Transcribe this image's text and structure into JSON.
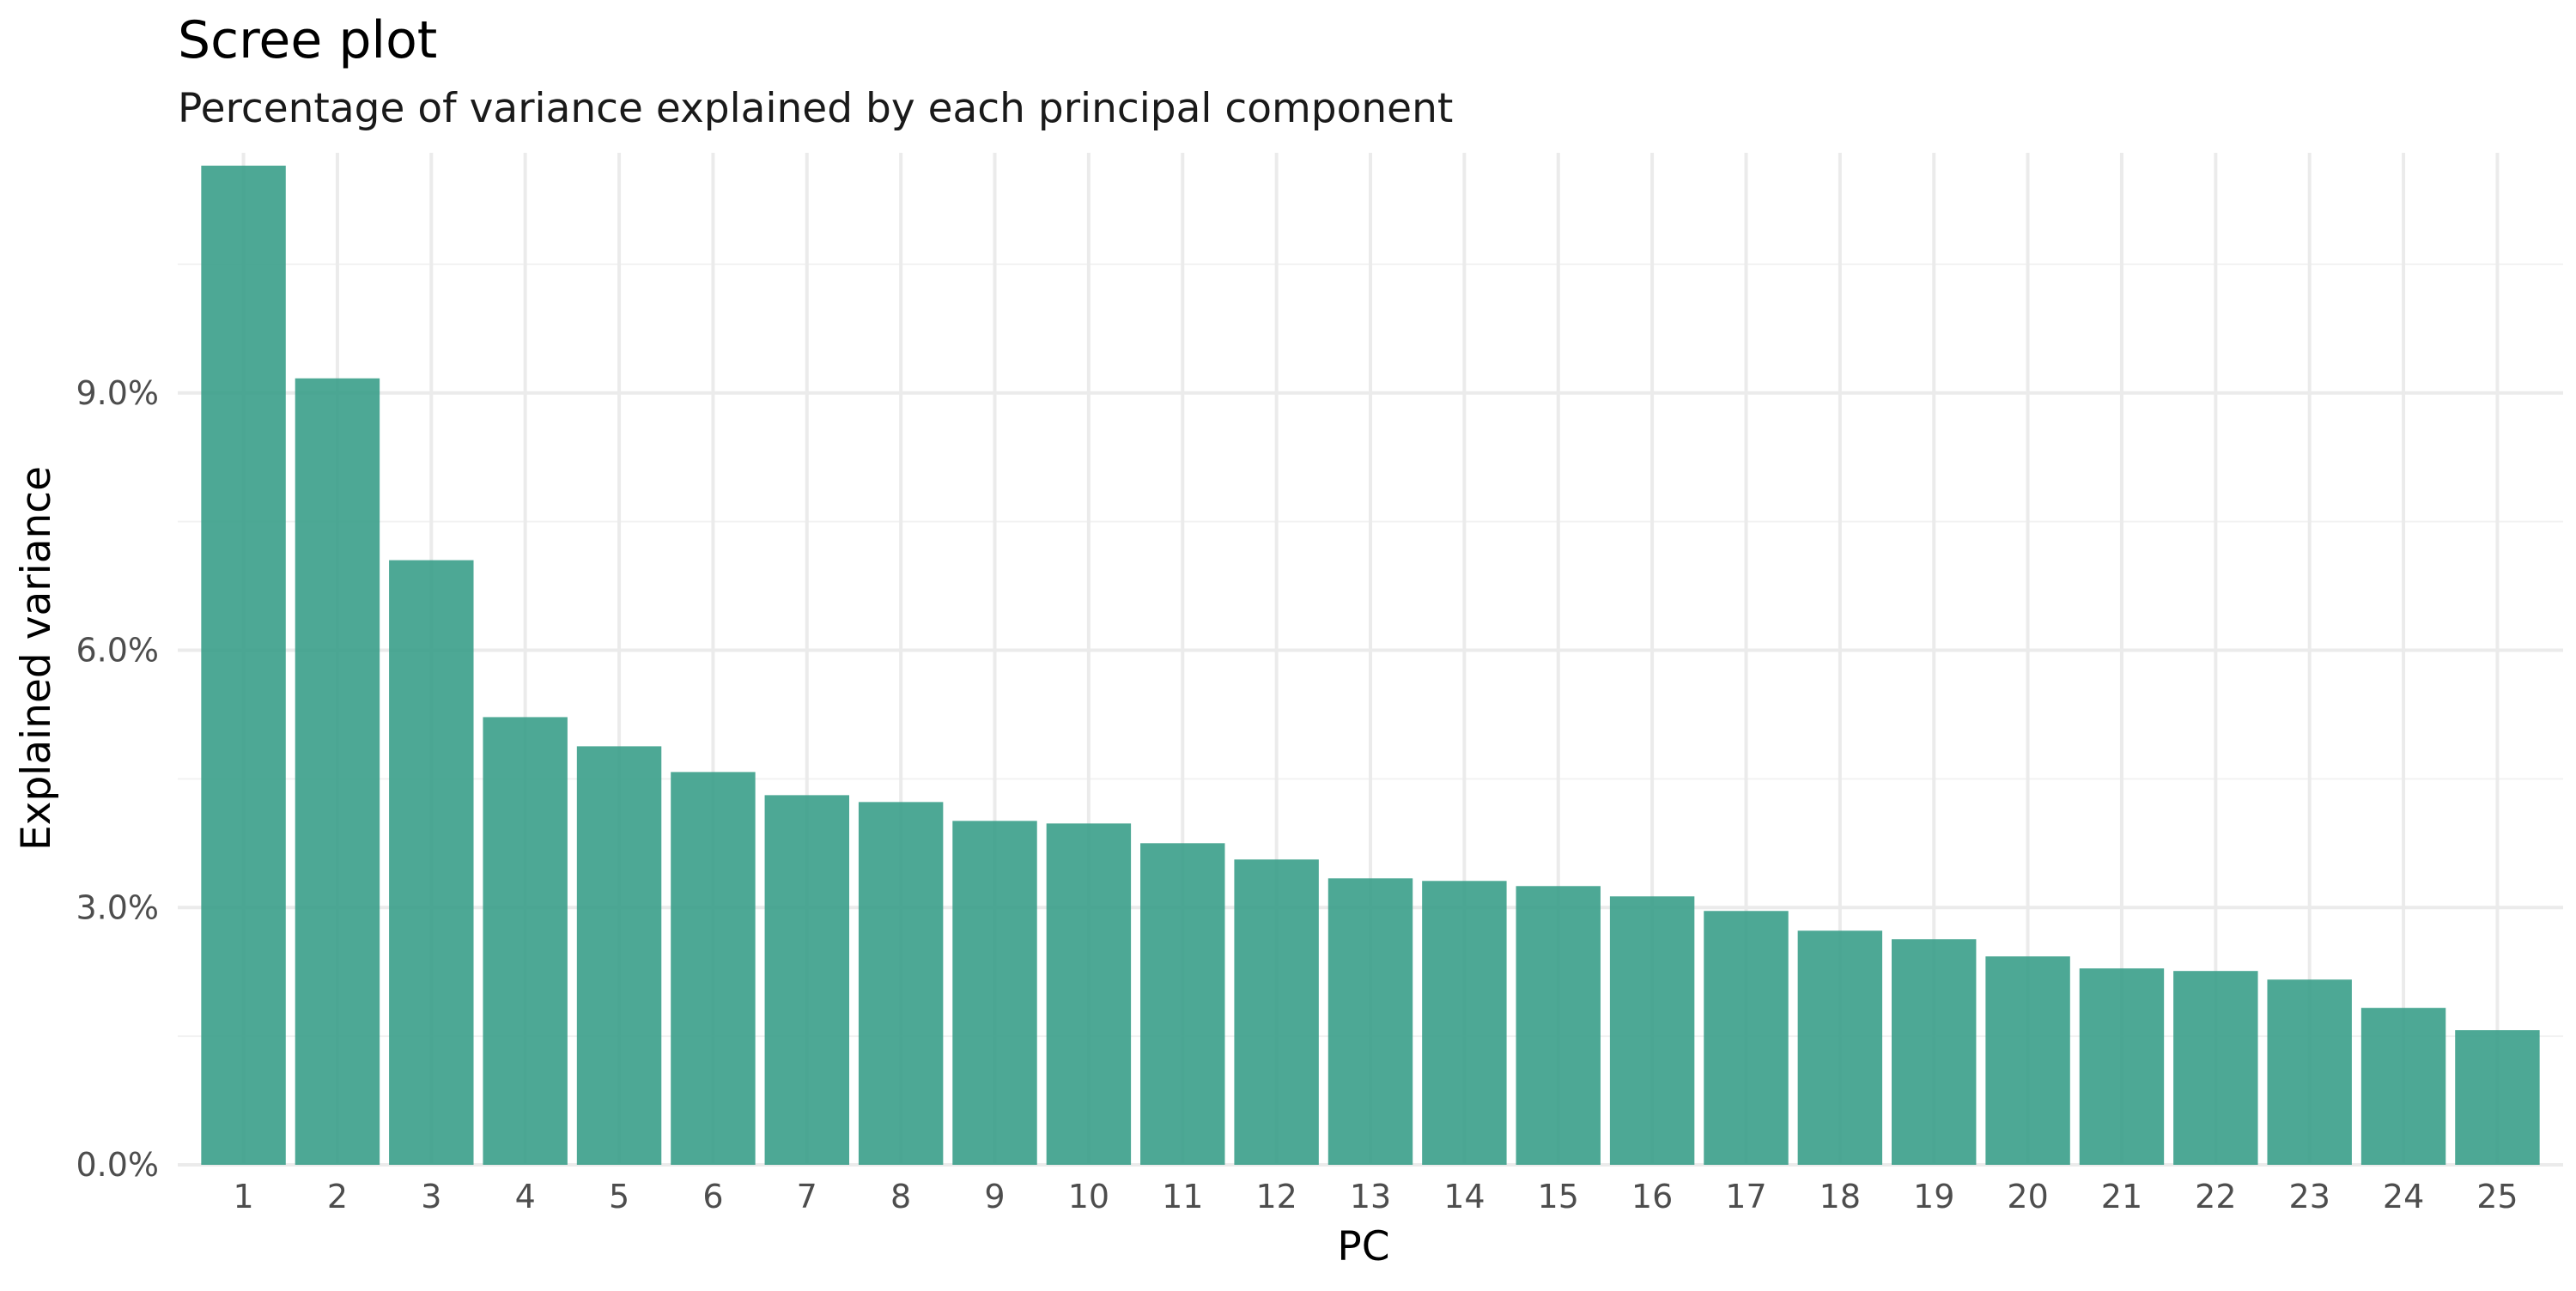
{
  "chart_data": {
    "type": "bar",
    "title": "Scree plot",
    "subtitle": "Percentage of variance explained by each principal component",
    "xlabel": "PC",
    "ylabel": "Explained variance",
    "categories": [
      "1",
      "2",
      "3",
      "4",
      "5",
      "6",
      "7",
      "8",
      "9",
      "10",
      "11",
      "12",
      "13",
      "14",
      "15",
      "16",
      "17",
      "18",
      "19",
      "20",
      "21",
      "22",
      "23",
      "24",
      "25"
    ],
    "values": [
      11.65,
      9.17,
      7.05,
      5.22,
      4.88,
      4.58,
      4.31,
      4.23,
      4.01,
      3.98,
      3.75,
      3.56,
      3.34,
      3.31,
      3.25,
      3.13,
      2.96,
      2.73,
      2.63,
      2.43,
      2.29,
      2.26,
      2.16,
      1.83,
      1.57
    ],
    "value_unit": "%",
    "ylim": [
      0,
      11.8
    ],
    "yticks": [
      0,
      3,
      6,
      9
    ],
    "ytick_labels": [
      "0.0%",
      "3.0%",
      "6.0%",
      "9.0%"
    ],
    "grid": true,
    "bar_color": "#3a9e8a",
    "bar_opacity": 0.9
  }
}
